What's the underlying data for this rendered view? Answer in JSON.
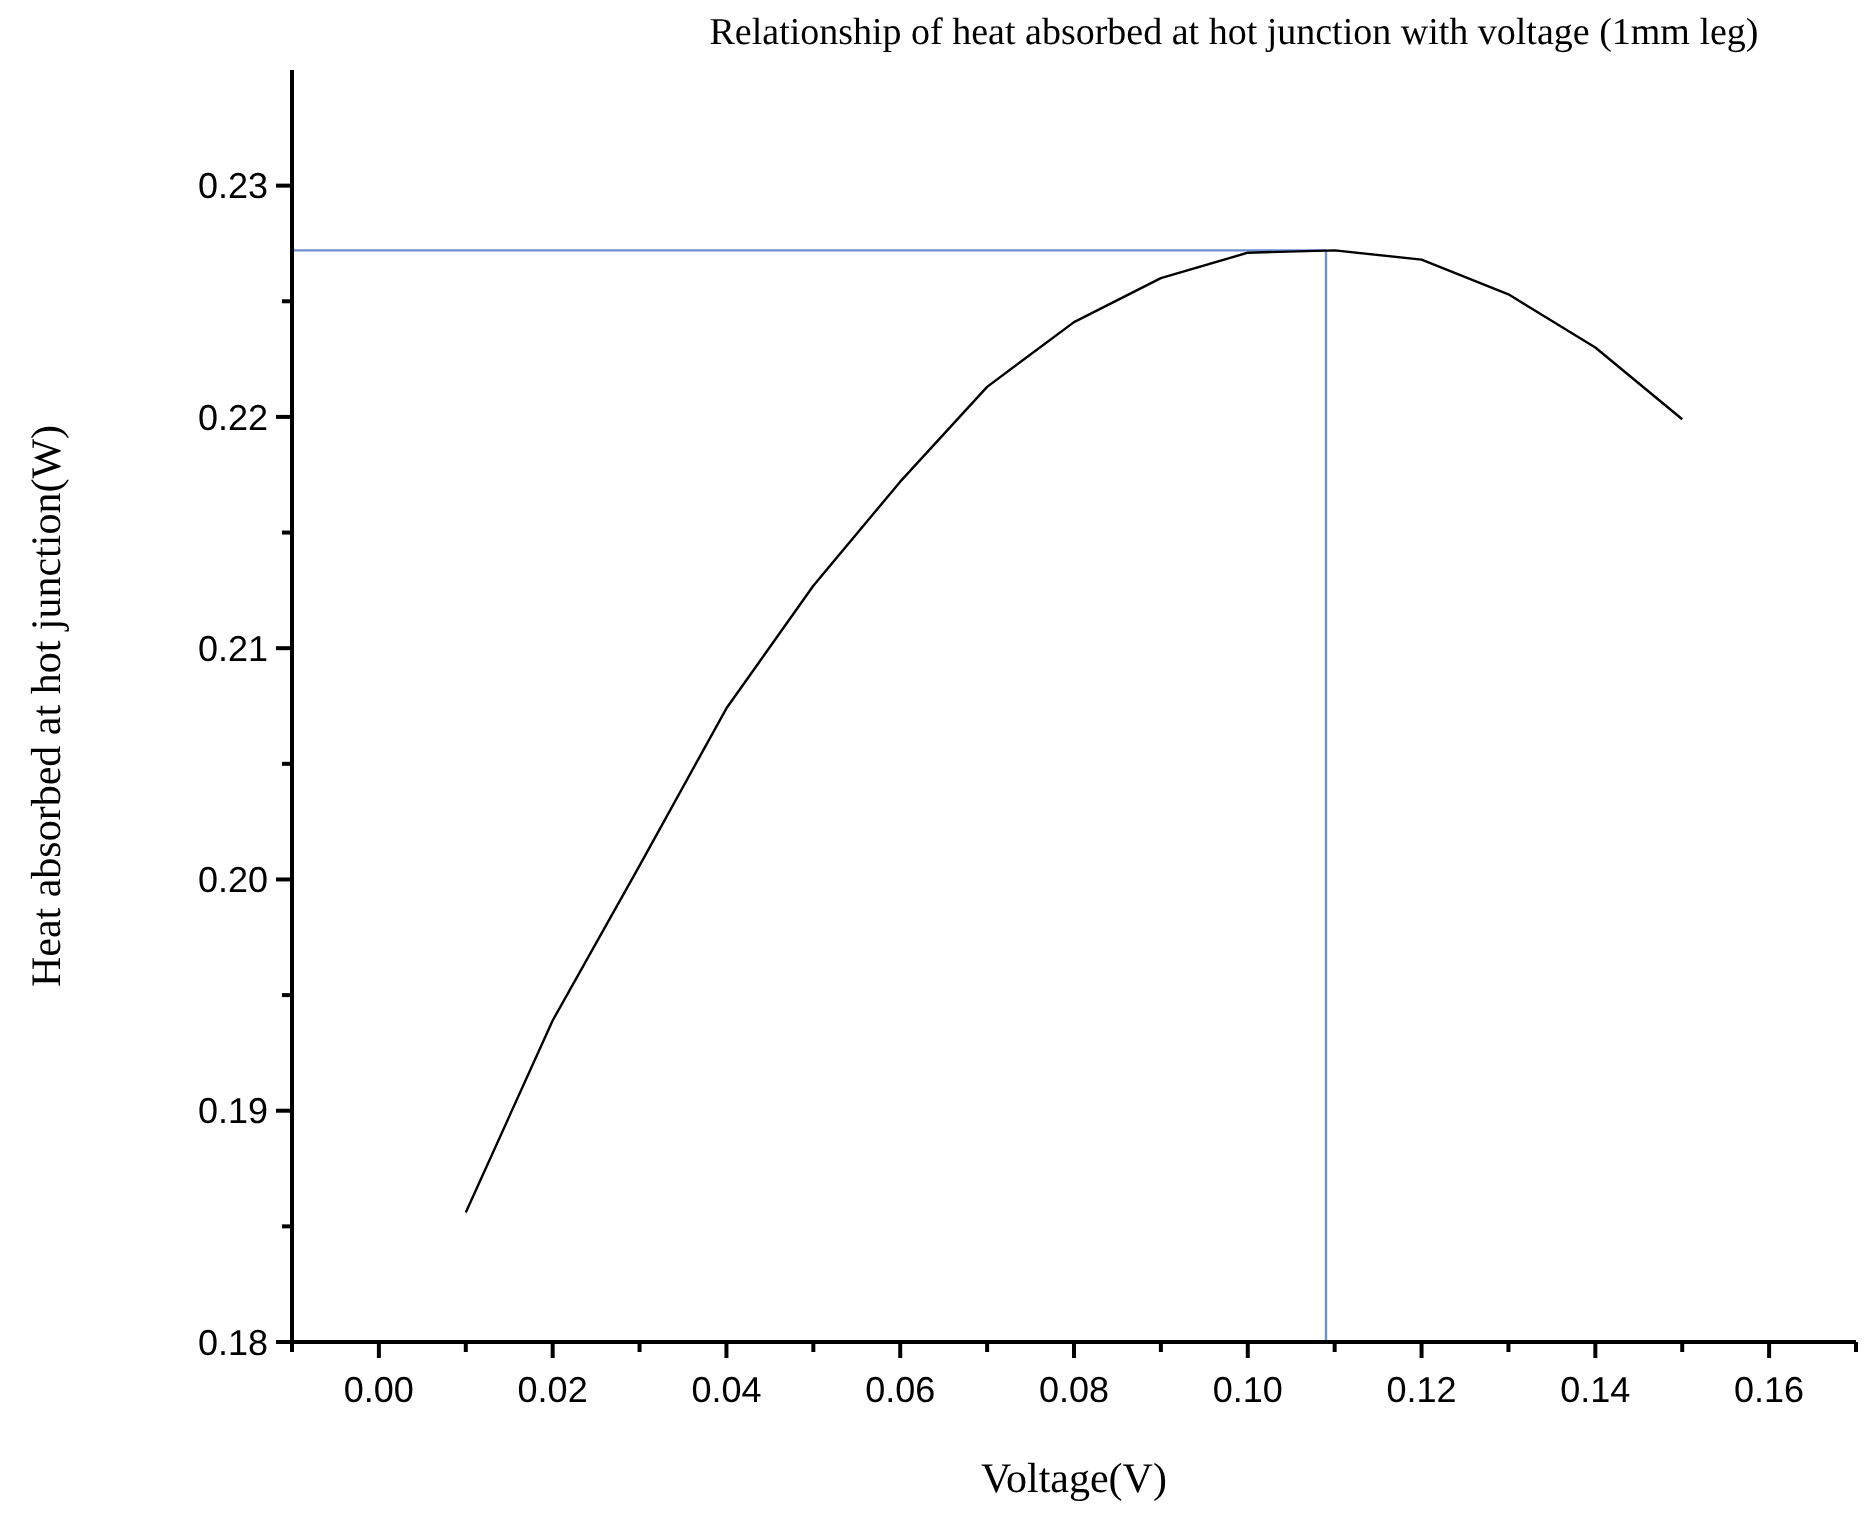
{
  "chart_data": {
    "type": "line",
    "title": "Relationship of heat absorbed at hot junction with voltage (1mm leg)",
    "xlabel": "Voltage(V)",
    "ylabel": "Heat absorbed at hot junction(W)",
    "x": [
      0.01,
      0.02,
      0.03,
      0.04,
      0.05,
      0.06,
      0.07,
      0.08,
      0.09,
      0.1,
      0.11,
      0.12,
      0.13,
      0.14,
      0.15
    ],
    "series": [
      {
        "color": "#000000",
        "values": [
          0.1856,
          0.1939,
          0.2006,
          0.2074,
          0.2127,
          0.2172,
          0.2213,
          0.2241,
          0.226,
          0.2271,
          0.2272,
          0.2268,
          0.2253,
          0.223,
          0.2199
        ]
      }
    ],
    "xlim": [
      -0.01,
      0.17
    ],
    "xticks": [
      {
        "value": 0,
        "label": "0.00"
      },
      {
        "value": 0.02,
        "label": "0.02"
      },
      {
        "value": 0.04,
        "label": "0.04"
      },
      {
        "value": 0.06,
        "label": "0.06"
      },
      {
        "value": 0.08,
        "label": "0.08"
      },
      {
        "value": 0.1,
        "label": "0.10"
      },
      {
        "value": 0.12,
        "label": "0.12"
      },
      {
        "value": 0.14,
        "label": "0.14"
      },
      {
        "value": 0.16,
        "label": "0.16"
      }
    ],
    "ylim": [
      0.18,
      0.235
    ],
    "yticks": [
      {
        "value": 0.18,
        "label": "0.18"
      },
      {
        "value": 0.19,
        "label": "0.19"
      },
      {
        "value": 0.2,
        "label": "0.20"
      },
      {
        "value": 0.21,
        "label": "0.21"
      },
      {
        "value": 0.22,
        "label": "0.22"
      },
      {
        "value": 0.23,
        "label": "0.23"
      }
    ],
    "ref_lines": [
      {
        "axis": "y",
        "value": 0.2272,
        "color": "#6f8fcf"
      },
      {
        "axis": "x",
        "value": 0.109,
        "color": "#6f8fcf"
      }
    ],
    "grid": false,
    "line_style": "solid"
  }
}
